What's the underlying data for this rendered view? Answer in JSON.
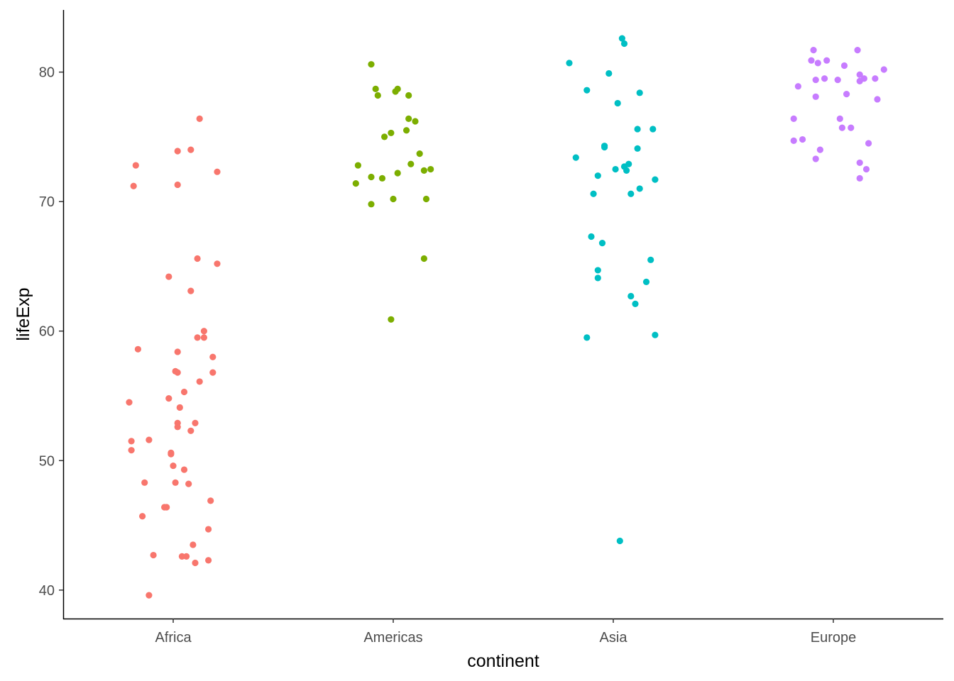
{
  "chart_data": {
    "type": "scatter",
    "xlabel": "continent",
    "ylabel": "lifeExp",
    "categories": [
      "Africa",
      "Americas",
      "Asia",
      "Europe"
    ],
    "ylim": [
      37.8,
      84.8
    ],
    "yticks": [
      40,
      50,
      60,
      70,
      80
    ],
    "grid": false,
    "legend": "none",
    "colors": {
      "Africa": "#F8766D",
      "Americas": "#7CAE00",
      "Asia": "#00BFC4",
      "Europe": "#C77CFF"
    },
    "series": [
      {
        "category": "Africa",
        "points": [
          [
            -0.17,
            72.8
          ],
          [
            -0.18,
            71.2
          ],
          [
            0.02,
            73.9
          ],
          [
            0.08,
            74.0
          ],
          [
            0.12,
            76.4
          ],
          [
            0.2,
            72.3
          ],
          [
            0.02,
            71.3
          ],
          [
            -0.02,
            64.2
          ],
          [
            0.11,
            65.6
          ],
          [
            0.2,
            65.2
          ],
          [
            0.08,
            63.1
          ],
          [
            0.14,
            60.0
          ],
          [
            0.11,
            59.5
          ],
          [
            0.14,
            59.5
          ],
          [
            -0.16,
            58.6
          ],
          [
            0.02,
            58.4
          ],
          [
            0.18,
            58.0
          ],
          [
            0.01,
            56.9
          ],
          [
            0.02,
            56.8
          ],
          [
            0.18,
            56.8
          ],
          [
            0.12,
            56.1
          ],
          [
            0.05,
            55.3
          ],
          [
            -0.2,
            54.5
          ],
          [
            -0.02,
            54.8
          ],
          [
            0.03,
            54.1
          ],
          [
            0.02,
            52.9
          ],
          [
            0.1,
            52.9
          ],
          [
            0.02,
            52.6
          ],
          [
            0.08,
            52.3
          ],
          [
            -0.19,
            51.5
          ],
          [
            -0.11,
            51.6
          ],
          [
            -0.19,
            50.8
          ],
          [
            -0.01,
            50.6
          ],
          [
            -0.01,
            50.5
          ],
          [
            0.0,
            49.6
          ],
          [
            0.05,
            49.3
          ],
          [
            -0.13,
            48.3
          ],
          [
            0.01,
            48.3
          ],
          [
            0.07,
            48.2
          ],
          [
            0.17,
            46.9
          ],
          [
            -0.04,
            46.4
          ],
          [
            -0.03,
            46.4
          ],
          [
            -0.14,
            45.7
          ],
          [
            0.16,
            44.7
          ],
          [
            0.09,
            43.5
          ],
          [
            -0.09,
            42.7
          ],
          [
            0.04,
            42.6
          ],
          [
            0.06,
            42.6
          ],
          [
            0.1,
            42.1
          ],
          [
            0.16,
            42.3
          ],
          [
            -0.11,
            39.6
          ]
        ]
      },
      {
        "category": "Americas",
        "points": [
          [
            -0.1,
            80.6
          ],
          [
            -0.08,
            78.7
          ],
          [
            -0.07,
            78.2
          ],
          [
            0.01,
            78.5
          ],
          [
            0.02,
            78.7
          ],
          [
            0.07,
            78.2
          ],
          [
            0.07,
            76.4
          ],
          [
            0.1,
            76.2
          ],
          [
            0.06,
            75.5
          ],
          [
            -0.01,
            75.3
          ],
          [
            -0.04,
            75.0
          ],
          [
            0.12,
            73.7
          ],
          [
            -0.16,
            72.8
          ],
          [
            0.08,
            72.9
          ],
          [
            0.14,
            72.4
          ],
          [
            0.17,
            72.5
          ],
          [
            0.02,
            72.2
          ],
          [
            -0.1,
            71.9
          ],
          [
            -0.05,
            71.8
          ],
          [
            -0.17,
            71.4
          ],
          [
            -0.1,
            69.8
          ],
          [
            0.0,
            70.2
          ],
          [
            0.15,
            70.2
          ],
          [
            0.14,
            65.6
          ],
          [
            -0.01,
            60.9
          ]
        ]
      },
      {
        "category": "Asia",
        "points": [
          [
            0.04,
            82.6
          ],
          [
            0.05,
            82.2
          ],
          [
            -0.2,
            80.7
          ],
          [
            -0.02,
            79.9
          ],
          [
            -0.12,
            78.6
          ],
          [
            0.12,
            78.4
          ],
          [
            0.02,
            77.6
          ],
          [
            0.11,
            75.6
          ],
          [
            0.18,
            75.6
          ],
          [
            -0.04,
            74.2
          ],
          [
            -0.04,
            74.3
          ],
          [
            0.11,
            74.1
          ],
          [
            -0.17,
            73.4
          ],
          [
            0.07,
            72.9
          ],
          [
            0.05,
            72.7
          ],
          [
            0.01,
            72.5
          ],
          [
            0.06,
            72.4
          ],
          [
            -0.07,
            72.0
          ],
          [
            0.19,
            71.7
          ],
          [
            0.12,
            71.0
          ],
          [
            0.08,
            70.6
          ],
          [
            -0.09,
            70.6
          ],
          [
            -0.1,
            67.3
          ],
          [
            -0.05,
            66.8
          ],
          [
            0.17,
            65.5
          ],
          [
            -0.07,
            64.7
          ],
          [
            -0.07,
            64.1
          ],
          [
            0.15,
            63.8
          ],
          [
            0.08,
            62.7
          ],
          [
            0.1,
            62.1
          ],
          [
            0.19,
            59.7
          ],
          [
            -0.12,
            59.5
          ],
          [
            0.03,
            43.8
          ]
        ]
      },
      {
        "category": "Europe",
        "points": [
          [
            -0.09,
            81.7
          ],
          [
            0.11,
            81.7
          ],
          [
            -0.1,
            80.9
          ],
          [
            -0.03,
            80.9
          ],
          [
            -0.07,
            80.7
          ],
          [
            0.05,
            80.5
          ],
          [
            0.23,
            80.2
          ],
          [
            -0.04,
            79.5
          ],
          [
            0.12,
            79.8
          ],
          [
            0.14,
            79.5
          ],
          [
            0.19,
            79.5
          ],
          [
            0.12,
            79.3
          ],
          [
            -0.08,
            79.4
          ],
          [
            -0.16,
            78.9
          ],
          [
            0.02,
            79.4
          ],
          [
            -0.08,
            78.1
          ],
          [
            0.06,
            78.3
          ],
          [
            0.2,
            77.9
          ],
          [
            -0.18,
            76.4
          ],
          [
            0.03,
            76.4
          ],
          [
            0.04,
            75.7
          ],
          [
            0.08,
            75.7
          ],
          [
            -0.14,
            74.8
          ],
          [
            -0.18,
            74.7
          ],
          [
            0.16,
            74.5
          ],
          [
            -0.06,
            74.0
          ],
          [
            -0.08,
            73.3
          ],
          [
            0.12,
            73.0
          ],
          [
            0.15,
            72.5
          ],
          [
            0.12,
            71.8
          ]
        ]
      }
    ]
  }
}
